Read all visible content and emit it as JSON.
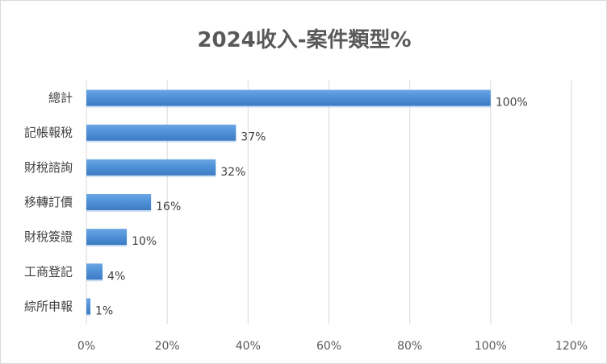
{
  "chart_data": {
    "type": "bar",
    "orientation": "horizontal",
    "title": "2024收入-案件類型%",
    "categories": [
      "總計",
      "記帳報稅",
      "財稅諮詢",
      "移轉訂價",
      "財稅簽證",
      "工商登記",
      "綜所申報"
    ],
    "values": [
      100,
      37,
      32,
      16,
      10,
      4,
      1
    ],
    "data_labels": [
      "100%",
      "37%",
      "32%",
      "16%",
      "10%",
      "4%",
      "1%"
    ],
    "xlim": [
      0,
      120
    ],
    "xticks": [
      0,
      20,
      40,
      60,
      80,
      100,
      120
    ],
    "xtick_labels": [
      "0%",
      "20%",
      "40%",
      "60%",
      "80%",
      "100%",
      "120%"
    ],
    "grid": "vertical",
    "legend": "none",
    "bar_color": "#4e8fd6"
  }
}
